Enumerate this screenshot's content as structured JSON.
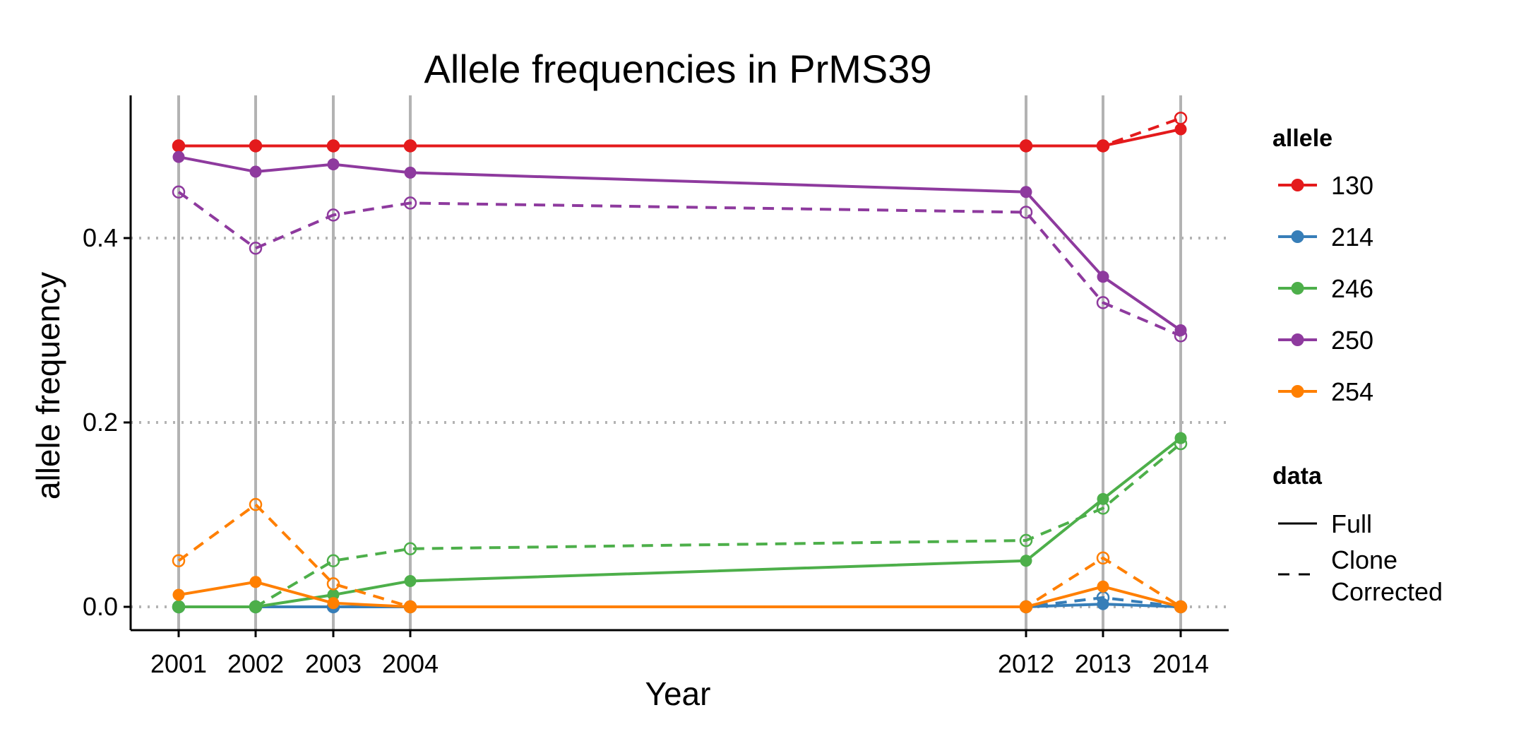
{
  "chart_data": {
    "type": "line",
    "title": "Allele frequencies in PrMS39",
    "xlabel": "Year",
    "ylabel": "allele frequency",
    "x": [
      2001,
      2002,
      2003,
      2004,
      2012,
      2013,
      2014
    ],
    "x_tick_labels": [
      "2001",
      "2002",
      "2003",
      "2004",
      "2012",
      "2013",
      "2014"
    ],
    "ylim": [
      -0.025,
      0.555
    ],
    "y_ticks": [
      0.0,
      0.2,
      0.4
    ],
    "y_tick_labels": [
      "0.0",
      "0.2",
      "0.4"
    ],
    "grid": "vertical solid at years, horizontal dotted at y ticks",
    "legend_placement": "right",
    "series": [
      {
        "allele": "130",
        "data": "Full",
        "color": "#E41A1C",
        "values": [
          0.5,
          0.5,
          0.5,
          0.5,
          0.5,
          0.5,
          0.518
        ]
      },
      {
        "allele": "130",
        "data": "Clone Corrected",
        "color": "#E41A1C",
        "values": [
          0.5,
          0.5,
          0.5,
          0.5,
          0.5,
          0.5,
          0.53
        ]
      },
      {
        "allele": "214",
        "data": "Full",
        "color": "#377EB8",
        "values": [
          0.0,
          0.0,
          0.0,
          0.0,
          0.0,
          0.003,
          0.0
        ]
      },
      {
        "allele": "214",
        "data": "Clone Corrected",
        "color": "#377EB8",
        "values": [
          0.0,
          0.0,
          0.0,
          0.0,
          0.0,
          0.01,
          0.0
        ]
      },
      {
        "allele": "246",
        "data": "Full",
        "color": "#4DAF4A",
        "values": [
          0.0,
          0.0,
          0.013,
          0.028,
          0.05,
          0.117,
          0.183
        ]
      },
      {
        "allele": "246",
        "data": "Clone Corrected",
        "color": "#4DAF4A",
        "values": [
          0.0,
          0.0,
          0.05,
          0.063,
          0.072,
          0.107,
          0.177
        ]
      },
      {
        "allele": "250",
        "data": "Full",
        "color": "#8E3A9E",
        "values": [
          0.488,
          0.472,
          0.48,
          0.471,
          0.45,
          0.358,
          0.3
        ]
      },
      {
        "allele": "250",
        "data": "Clone Corrected",
        "color": "#8E3A9E",
        "values": [
          0.45,
          0.389,
          0.425,
          0.438,
          0.428,
          0.33,
          0.294
        ]
      },
      {
        "allele": "254",
        "data": "Full",
        "color": "#FF7F00",
        "values": [
          0.013,
          0.027,
          0.004,
          0.0,
          0.0,
          0.022,
          0.0
        ]
      },
      {
        "allele": "254",
        "data": "Clone Corrected",
        "color": "#FF7F00",
        "values": [
          0.05,
          0.111,
          0.025,
          0.0,
          0.0,
          0.053,
          0.0
        ]
      }
    ],
    "legend": {
      "allele_title": "allele",
      "alleles": [
        {
          "label": "130",
          "color": "#E41A1C"
        },
        {
          "label": "214",
          "color": "#377EB8"
        },
        {
          "label": "246",
          "color": "#4DAF4A"
        },
        {
          "label": "250",
          "color": "#8E3A9E"
        },
        {
          "label": "254",
          "color": "#FF7F00"
        }
      ],
      "data_title": "data",
      "data_types": [
        {
          "label": "Full",
          "style": "solid"
        },
        {
          "label_line1": "Clone",
          "label_line2": "Corrected",
          "style": "dashed"
        }
      ]
    }
  }
}
